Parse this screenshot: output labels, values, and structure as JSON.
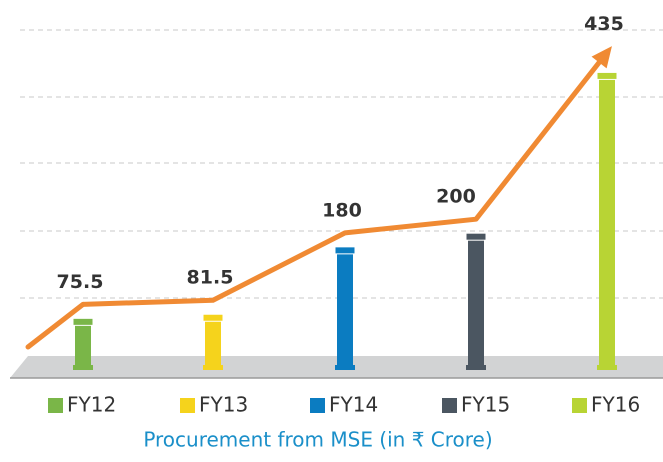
{
  "chart_data": {
    "type": "bar",
    "x_label": "Procurement from MSE (in ₹ Crore)",
    "categories": [
      "FY12",
      "FY13",
      "FY14",
      "FY15",
      "FY16"
    ],
    "values": [
      75.5,
      81.5,
      180,
      200,
      435
    ],
    "colors": [
      "#7ab648",
      "#f5d31c",
      "#0b7cc1",
      "#4b5661",
      "#b8d434"
    ],
    "line_color": "#f08a33",
    "ylim": [
      0,
      440
    ]
  }
}
